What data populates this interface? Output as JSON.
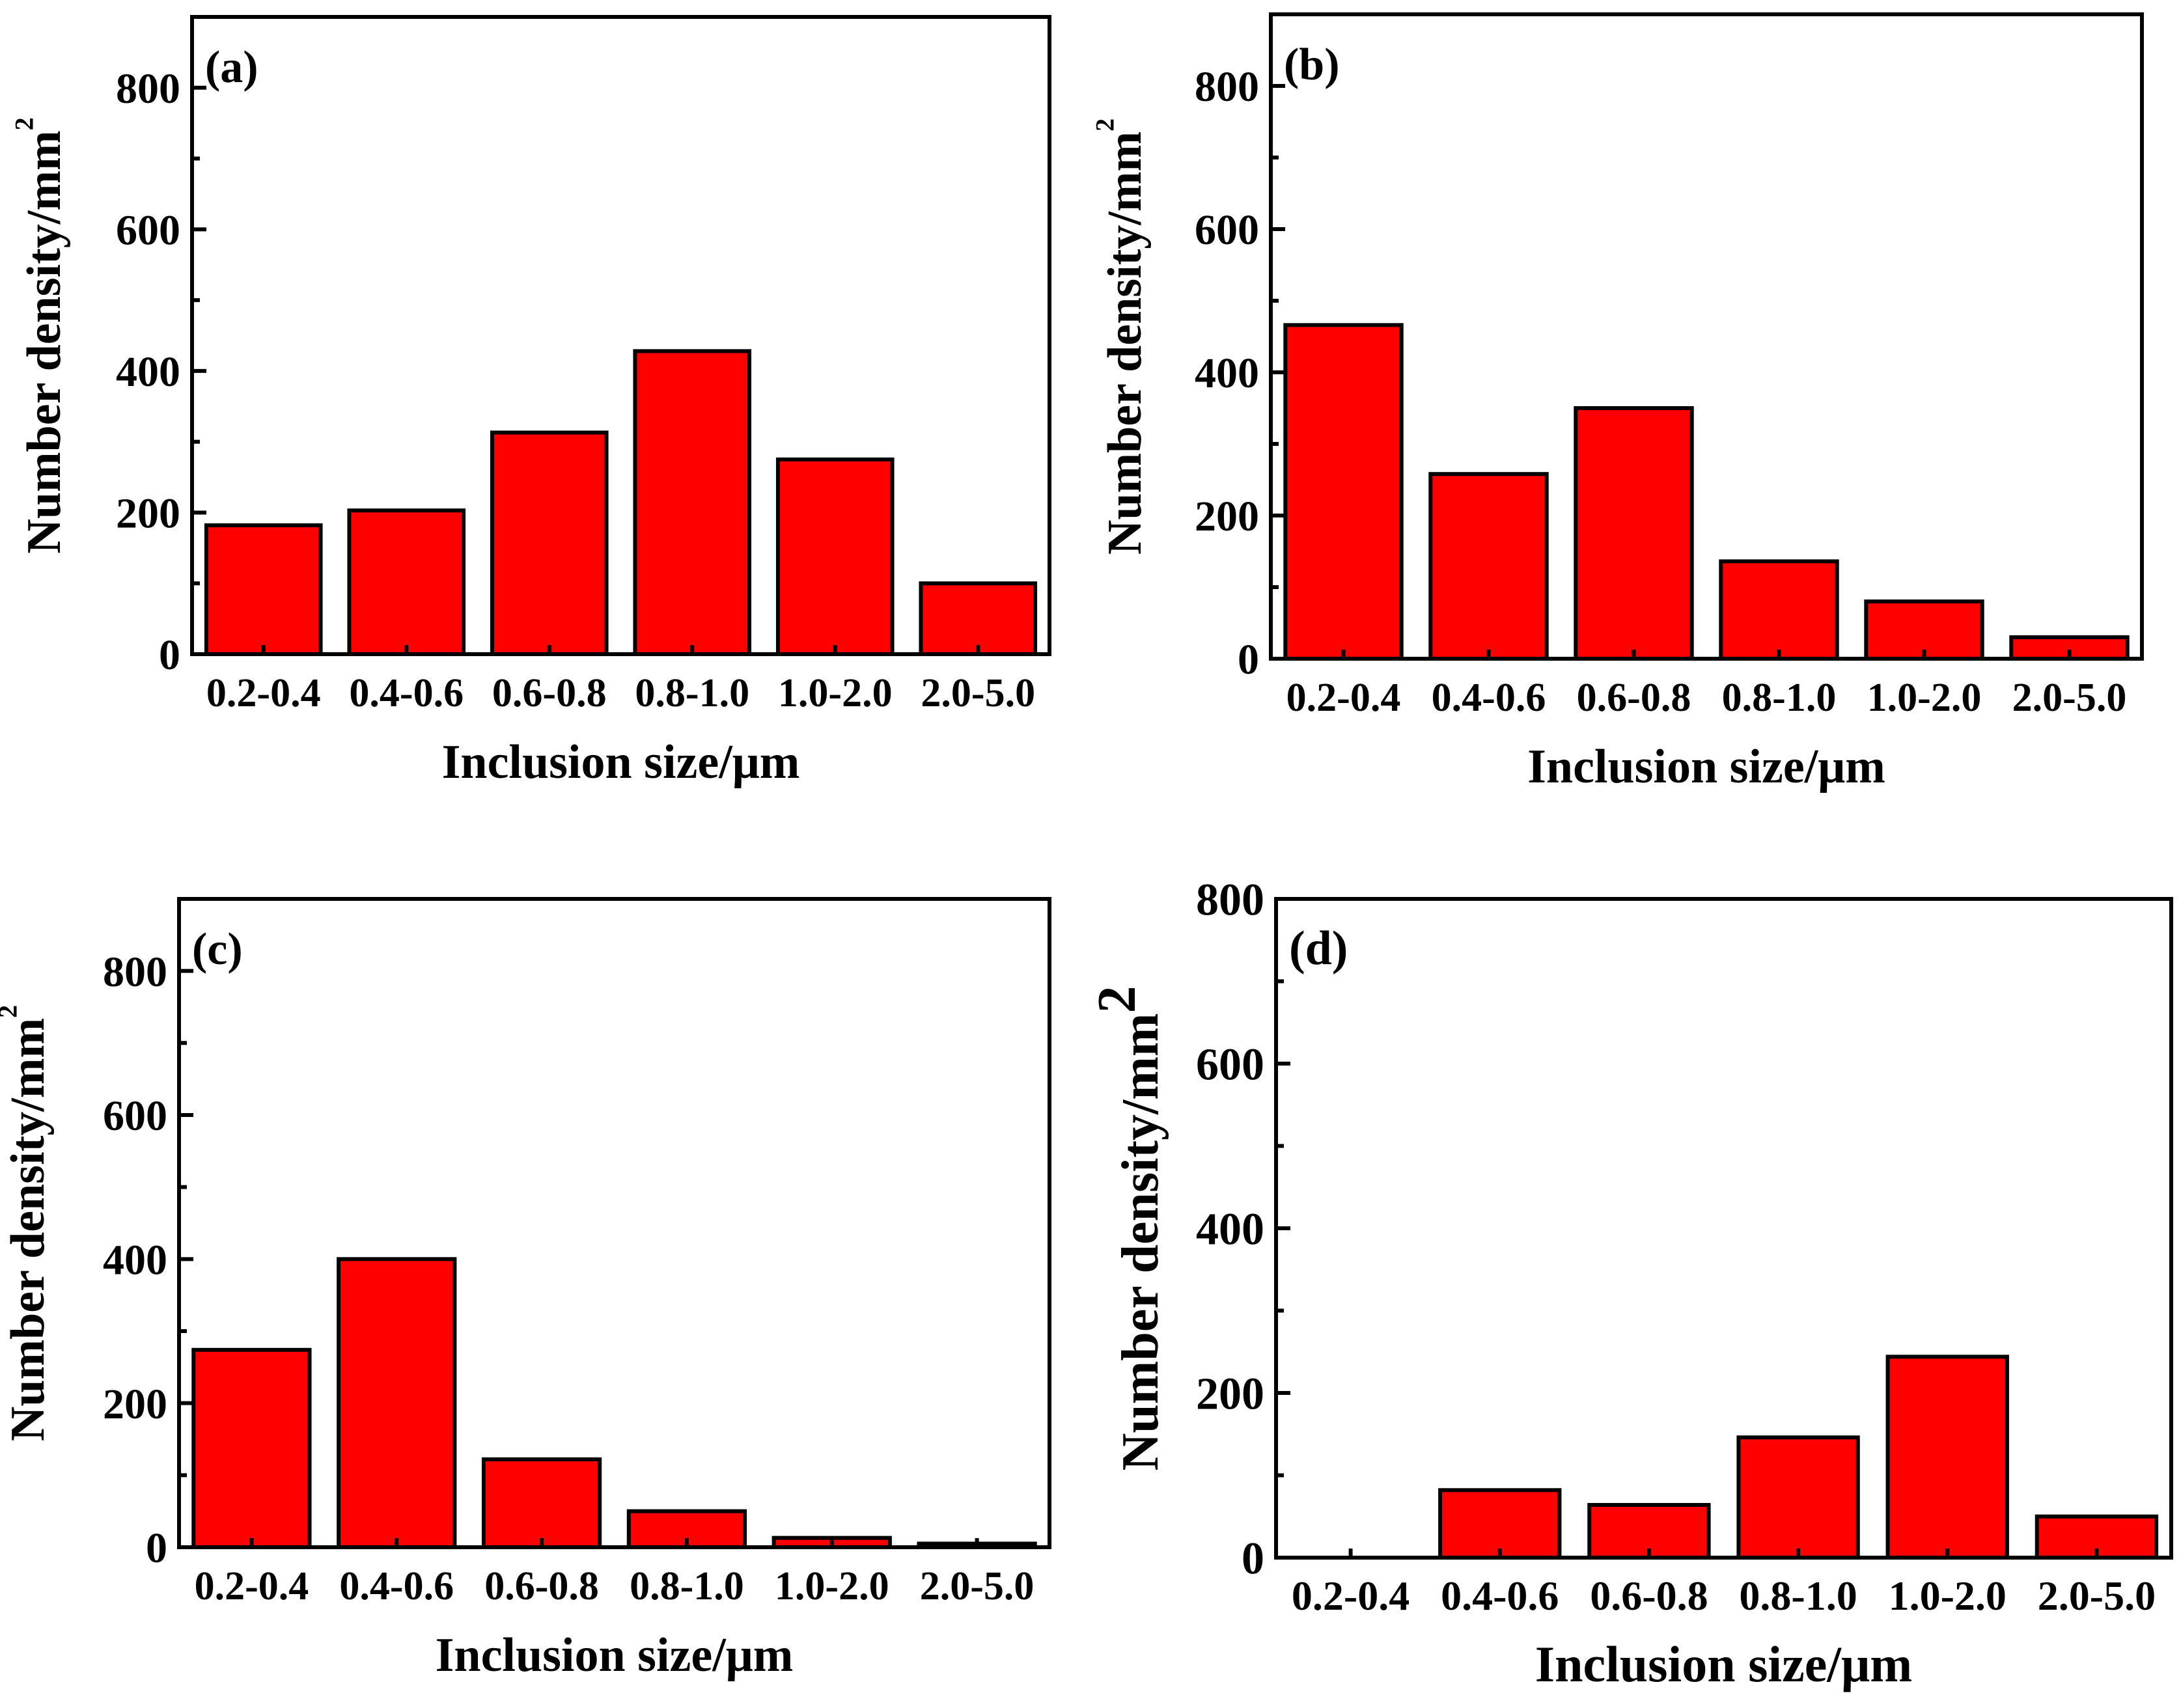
{
  "chart_data": [
    {
      "type": "bar",
      "panel_label": "(a)",
      "categories": [
        "0.2-0.4",
        "0.4-0.6",
        "0.6-0.8",
        "0.8-1.0",
        "1.0-2.0",
        "2.0-5.0"
      ],
      "values": [
        182,
        203,
        313,
        428,
        275,
        100
      ],
      "xlabel": "Inclusion size/μm",
      "ylabel": "Number density/mm",
      "ylabel_sup": "2",
      "yticks": [
        0,
        200,
        400,
        600,
        800
      ],
      "ylim": [
        0,
        900
      ],
      "bar_color": "#ff0000"
    },
    {
      "type": "bar",
      "panel_label": "(b)",
      "categories": [
        "0.2-0.4",
        "0.4-0.6",
        "0.6-0.8",
        "0.8-1.0",
        "1.0-2.0",
        "2.0-5.0"
      ],
      "values": [
        466,
        258,
        350,
        136,
        80,
        30
      ],
      "xlabel": "Inclusion size/μm",
      "ylabel": "Number density/mm",
      "ylabel_sup": "2",
      "yticks": [
        0,
        200,
        400,
        600,
        800
      ],
      "ylim": [
        0,
        900
      ],
      "bar_color": "#ff0000"
    },
    {
      "type": "bar",
      "panel_label": "(c)",
      "categories": [
        "0.2-0.4",
        "0.4-0.6",
        "0.6-0.8",
        "0.8-1.0",
        "1.0-2.0",
        "2.0-5.0"
      ],
      "values": [
        274,
        400,
        122,
        50,
        13,
        5
      ],
      "xlabel": "Inclusion size/μm",
      "ylabel": "Number density/mm",
      "ylabel_sup": "2",
      "yticks": [
        0,
        200,
        400,
        600,
        800
      ],
      "ylim": [
        0,
        900
      ],
      "bar_color": "#ff0000"
    },
    {
      "type": "bar",
      "panel_label": "(d)",
      "categories": [
        "0.2-0.4",
        "0.4-0.6",
        "0.6-0.8",
        "0.8-1.0",
        "1.0-2.0",
        "2.0-5.0"
      ],
      "values": [
        0,
        82,
        64,
        146,
        244,
        50
      ],
      "xlabel": "Inclusion size/μm",
      "ylabel": "Number density/mm",
      "ylabel_sup": "2",
      "yticks": [
        0,
        200,
        400,
        600,
        800
      ],
      "ylim": [
        0,
        800
      ],
      "bar_color": "#ff0000"
    }
  ]
}
